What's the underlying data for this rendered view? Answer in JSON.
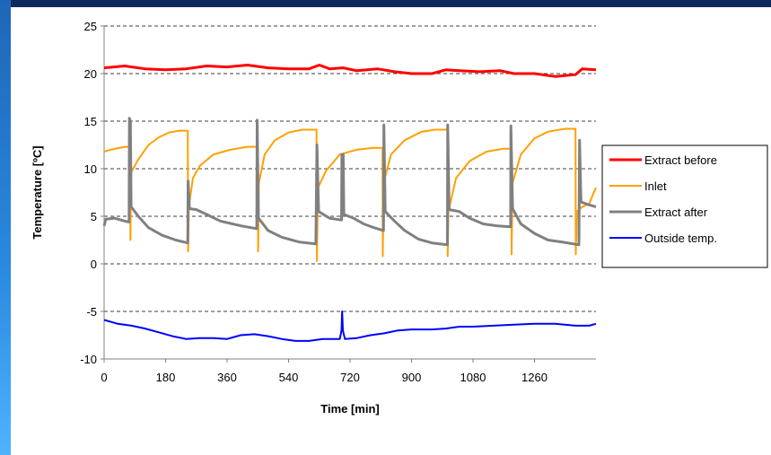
{
  "chart_data": {
    "type": "line",
    "title": "",
    "xlabel": "Time [min]",
    "ylabel": "Temperature [ºC]",
    "xlim": [
      0,
      1440
    ],
    "ylim": [
      -10,
      25
    ],
    "xticks": [
      0,
      180,
      360,
      540,
      720,
      900,
      1080,
      1260
    ],
    "yticks": [
      -10,
      -5,
      0,
      5,
      10,
      15,
      20,
      25
    ],
    "grid": "horizontal dashed",
    "legend_position": "right",
    "series": [
      {
        "name": "Extract before",
        "color": "#ff0000",
        "points": [
          [
            0,
            20.6
          ],
          [
            60,
            20.8
          ],
          [
            120,
            20.5
          ],
          [
            180,
            20.4
          ],
          [
            240,
            20.5
          ],
          [
            300,
            20.8
          ],
          [
            360,
            20.7
          ],
          [
            420,
            20.9
          ],
          [
            480,
            20.6
          ],
          [
            540,
            20.5
          ],
          [
            600,
            20.5
          ],
          [
            630,
            20.9
          ],
          [
            660,
            20.5
          ],
          [
            700,
            20.6
          ],
          [
            740,
            20.3
          ],
          [
            800,
            20.5
          ],
          [
            850,
            20.2
          ],
          [
            900,
            20.0
          ],
          [
            960,
            20.0
          ],
          [
            1000,
            20.4
          ],
          [
            1040,
            20.3
          ],
          [
            1100,
            20.2
          ],
          [
            1160,
            20.3
          ],
          [
            1200,
            20.0
          ],
          [
            1260,
            20.0
          ],
          [
            1320,
            19.7
          ],
          [
            1380,
            19.9
          ],
          [
            1400,
            20.5
          ],
          [
            1440,
            20.4
          ]
        ]
      },
      {
        "name": "Inlet",
        "color": "#ffa000",
        "points": [
          [
            0,
            11.8
          ],
          [
            20,
            12.0
          ],
          [
            60,
            12.3
          ],
          [
            76,
            12.3
          ],
          [
            77,
            2.5
          ],
          [
            79,
            9.6
          ],
          [
            100,
            11.0
          ],
          [
            130,
            12.5
          ],
          [
            160,
            13.3
          ],
          [
            190,
            13.8
          ],
          [
            220,
            14.0
          ],
          [
            245,
            14.0
          ],
          [
            246,
            1.3
          ],
          [
            248,
            6.0
          ],
          [
            260,
            9.0
          ],
          [
            280,
            10.3
          ],
          [
            320,
            11.5
          ],
          [
            370,
            12.0
          ],
          [
            420,
            12.3
          ],
          [
            450,
            12.3
          ],
          [
            451,
            1.3
          ],
          [
            453,
            8.5
          ],
          [
            470,
            11.5
          ],
          [
            500,
            13.0
          ],
          [
            540,
            13.8
          ],
          [
            580,
            14.1
          ],
          [
            622,
            14.1
          ],
          [
            623,
            0.3
          ],
          [
            626,
            8.0
          ],
          [
            650,
            9.8
          ],
          [
            690,
            11.5
          ],
          [
            740,
            12.0
          ],
          [
            790,
            12.2
          ],
          [
            815,
            12.2
          ],
          [
            816,
            0.8
          ],
          [
            818,
            8.5
          ],
          [
            840,
            11.5
          ],
          [
            880,
            13.0
          ],
          [
            930,
            13.9
          ],
          [
            970,
            14.1
          ],
          [
            1005,
            14.1
          ],
          [
            1006,
            0.8
          ],
          [
            1008,
            5.5
          ],
          [
            1030,
            9.0
          ],
          [
            1070,
            10.8
          ],
          [
            1120,
            11.8
          ],
          [
            1170,
            12.1
          ],
          [
            1192,
            12.1
          ],
          [
            1193,
            1.0
          ],
          [
            1196,
            8.5
          ],
          [
            1220,
            11.5
          ],
          [
            1260,
            13.2
          ],
          [
            1300,
            13.9
          ],
          [
            1350,
            14.2
          ],
          [
            1380,
            14.2
          ],
          [
            1381,
            1.0
          ],
          [
            1384,
            5.5
          ],
          [
            1400,
            6.0
          ],
          [
            1420,
            6.3
          ],
          [
            1430,
            7.2
          ],
          [
            1440,
            8.0
          ]
        ]
      },
      {
        "name": "Extract after",
        "color": "#808080",
        "points": [
          [
            0,
            4.0
          ],
          [
            5,
            4.7
          ],
          [
            30,
            4.8
          ],
          [
            60,
            4.5
          ],
          [
            73,
            4.4
          ],
          [
            74,
            15.3
          ],
          [
            77,
            15.0
          ],
          [
            79,
            6.0
          ],
          [
            100,
            5.0
          ],
          [
            130,
            3.8
          ],
          [
            170,
            3.0
          ],
          [
            210,
            2.5
          ],
          [
            245,
            2.2
          ],
          [
            246,
            8.7
          ],
          [
            250,
            5.8
          ],
          [
            270,
            5.7
          ],
          [
            300,
            5.2
          ],
          [
            340,
            4.5
          ],
          [
            400,
            4.0
          ],
          [
            447,
            3.7
          ],
          [
            448,
            15.1
          ],
          [
            452,
            4.8
          ],
          [
            480,
            3.5
          ],
          [
            520,
            2.8
          ],
          [
            570,
            2.3
          ],
          [
            620,
            2.1
          ],
          [
            623,
            12.5
          ],
          [
            628,
            5.5
          ],
          [
            660,
            4.8
          ],
          [
            695,
            4.6
          ],
          [
            696,
            11.5
          ],
          [
            700,
            11.5
          ],
          [
            702,
            5.2
          ],
          [
            730,
            4.8
          ],
          [
            760,
            4.2
          ],
          [
            790,
            3.8
          ],
          [
            818,
            3.5
          ],
          [
            819,
            14.6
          ],
          [
            823,
            5.5
          ],
          [
            850,
            4.5
          ],
          [
            880,
            3.5
          ],
          [
            920,
            2.6
          ],
          [
            960,
            2.2
          ],
          [
            1005,
            2.0
          ],
          [
            1006,
            14.6
          ],
          [
            1010,
            5.7
          ],
          [
            1040,
            5.5
          ],
          [
            1070,
            4.8
          ],
          [
            1110,
            4.2
          ],
          [
            1150,
            4.0
          ],
          [
            1190,
            3.9
          ],
          [
            1191,
            14.5
          ],
          [
            1196,
            5.8
          ],
          [
            1220,
            4.2
          ],
          [
            1260,
            3.2
          ],
          [
            1300,
            2.5
          ],
          [
            1340,
            2.3
          ],
          [
            1390,
            2.0
          ],
          [
            1392,
            13.0
          ],
          [
            1396,
            6.5
          ],
          [
            1420,
            6.2
          ],
          [
            1440,
            6.0
          ]
        ]
      },
      {
        "name": "Outside temp.",
        "color": "#0000ff",
        "points": [
          [
            0,
            -5.9
          ],
          [
            40,
            -6.3
          ],
          [
            80,
            -6.5
          ],
          [
            120,
            -6.8
          ],
          [
            160,
            -7.2
          ],
          [
            200,
            -7.6
          ],
          [
            240,
            -7.9
          ],
          [
            280,
            -7.8
          ],
          [
            320,
            -7.8
          ],
          [
            360,
            -7.9
          ],
          [
            400,
            -7.5
          ],
          [
            440,
            -7.4
          ],
          [
            480,
            -7.6
          ],
          [
            520,
            -7.9
          ],
          [
            560,
            -8.1
          ],
          [
            600,
            -8.1
          ],
          [
            640,
            -7.9
          ],
          [
            690,
            -7.9
          ],
          [
            695,
            -7.0
          ],
          [
            697,
            -5.0
          ],
          [
            699,
            -7.0
          ],
          [
            705,
            -7.9
          ],
          [
            740,
            -7.8
          ],
          [
            780,
            -7.5
          ],
          [
            820,
            -7.3
          ],
          [
            860,
            -7.0
          ],
          [
            900,
            -6.9
          ],
          [
            960,
            -6.9
          ],
          [
            1000,
            -6.8
          ],
          [
            1040,
            -6.6
          ],
          [
            1080,
            -6.6
          ],
          [
            1140,
            -6.5
          ],
          [
            1200,
            -6.4
          ],
          [
            1260,
            -6.3
          ],
          [
            1320,
            -6.3
          ],
          [
            1380,
            -6.5
          ],
          [
            1420,
            -6.5
          ],
          [
            1440,
            -6.3
          ]
        ]
      }
    ]
  }
}
